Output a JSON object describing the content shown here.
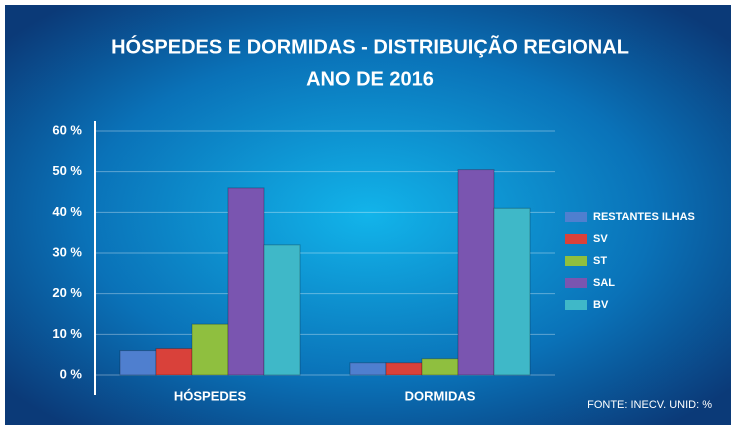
{
  "chart_data": {
    "type": "bar",
    "title": "HÓSPEDES E DORMIDAS - DISTRIBUIÇÃO REGIONAL",
    "subtitle": "ANO DE 2016",
    "note": "FONTE: INECV. UNID: %",
    "categories": [
      "HÓSPEDES",
      "DORMIDAS"
    ],
    "series": [
      {
        "name": "RESTANTES ILHAS",
        "color": "#4f7fcf",
        "values": [
          6,
          3
        ]
      },
      {
        "name": "SV",
        "color": "#d9413a",
        "values": [
          6.5,
          3
        ]
      },
      {
        "name": "ST",
        "color": "#8fbf3f",
        "values": [
          12.5,
          4
        ]
      },
      {
        "name": "SAL",
        "color": "#7a55b0",
        "values": [
          46,
          50.5
        ]
      },
      {
        "name": "BV",
        "color": "#3fb8c8",
        "values": [
          32,
          41
        ]
      }
    ],
    "ylim": [
      0,
      60
    ],
    "yticks": [
      {
        "value": 0,
        "label": "0 %"
      },
      {
        "value": 10,
        "label": "10 %"
      },
      {
        "value": 20,
        "label": "20 %"
      },
      {
        "value": 30,
        "label": "30 %"
      },
      {
        "value": 40,
        "label": "40 %"
      },
      {
        "value": 50,
        "label": "50 %"
      },
      {
        "value": 60,
        "label": "60 %"
      }
    ],
    "grid": true,
    "legend": "right"
  }
}
